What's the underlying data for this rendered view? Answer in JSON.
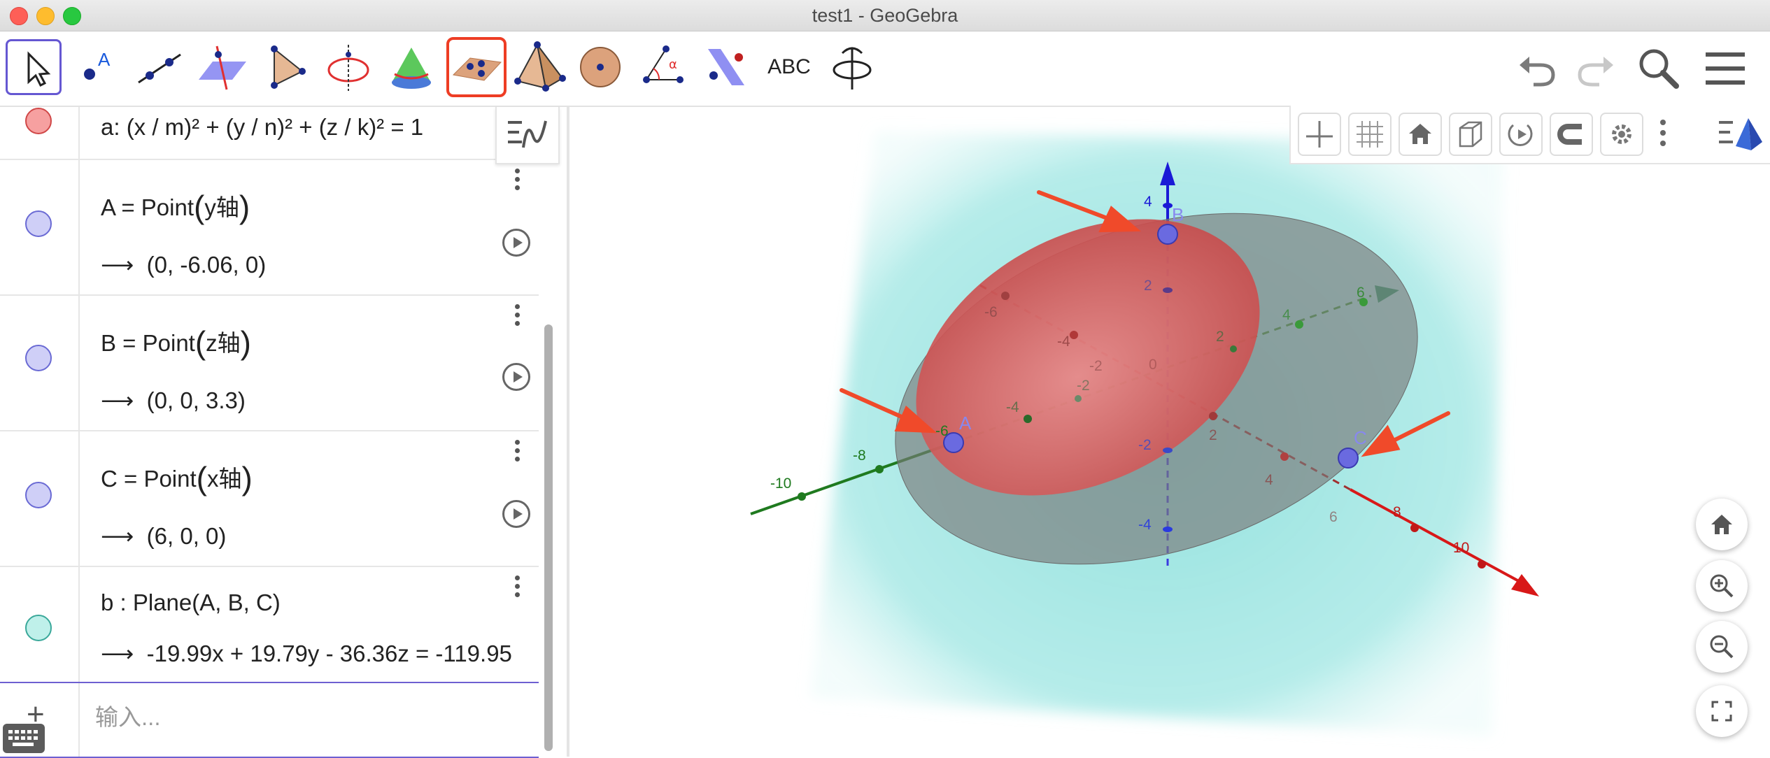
{
  "window": {
    "title": "test1 - GeoGebra"
  },
  "toolbar": {
    "tools": [
      "move-tool",
      "point-tool",
      "line-tool",
      "perpendicular-tool",
      "polygon-tool",
      "circle-axis-tool",
      "cone-tool",
      "plane-3-points-tool",
      "pyramid-tool",
      "sphere-tool",
      "angle-tool",
      "reflect-tool",
      "text-tool",
      "rotate-view-tool"
    ],
    "text_tool_label": "ABC",
    "selected": "move-tool",
    "highlighted": "plane-3-points-tool"
  },
  "algebra": {
    "rows": [
      {
        "def": "a: (x / m)² + (y / n)² + (z / k)² = 1",
        "color": "#f08080"
      },
      {
        "def_name": "A = Point",
        "def_arg": "y轴",
        "value": "(0, -6.06, 0)",
        "color": "#c8c8f4"
      },
      {
        "def_name": "B = Point",
        "def_arg": "z轴",
        "value": "(0, 0, 3.3)",
        "color": "#c8c8f4"
      },
      {
        "def_name": "C = Point",
        "def_arg": "x轴",
        "value": "(6, 0, 0)",
        "color": "#c8c8f4"
      },
      {
        "def": "b : Plane(A, B, C)",
        "value": "-19.99x + 19.79y - 36.36z = -119.95",
        "color": "#b8ece6"
      }
    ],
    "input_placeholder": "输入...",
    "arrow": "⟶",
    "add_symbol": "+"
  },
  "view3d": {
    "points": [
      {
        "label": "A"
      },
      {
        "label": "B"
      },
      {
        "label": "C"
      }
    ],
    "x_axis_ticks": [
      "-6",
      "-4",
      "-2",
      "2",
      "4",
      "6",
      "8",
      "10"
    ],
    "y_axis_ticks": [
      "-10",
      "-8",
      "-6",
      "-4",
      "-2",
      "2",
      "4",
      "6"
    ],
    "z_axis_ticks": [
      "4",
      "2",
      "-2",
      "-4"
    ],
    "origin_label": "0",
    "colors": {
      "x_axis": "#e02020",
      "y_axis": "#1f7a1f",
      "z_axis": "#1a1ad6",
      "plane": "#9fe6e2",
      "ellipsoid": "#d04848",
      "annotation_arrow": "#f04a2a"
    }
  }
}
